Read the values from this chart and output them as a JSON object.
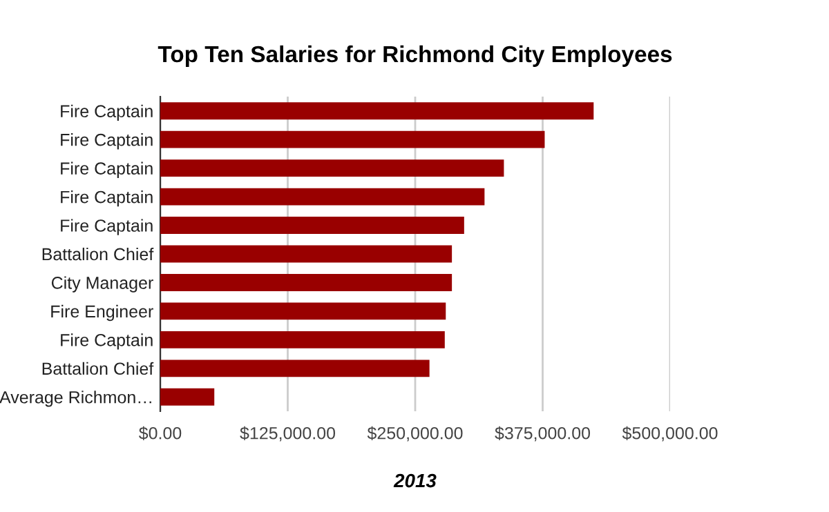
{
  "chart_data": {
    "type": "bar",
    "orientation": "horizontal",
    "title": "Top Ten Salaries for Richmond City Employees",
    "xlabel": "2013",
    "categories": [
      "Fire Captain",
      "Fire Captain",
      "Fire Captain",
      "Fire Captain",
      "Fire Captain",
      "Battalion Chief",
      "City Manager",
      "Fire Engineer",
      "Fire Captain",
      "Battalion Chief",
      "Average Richmon…"
    ],
    "values": [
      425000,
      377000,
      337000,
      318000,
      298000,
      286000,
      286000,
      280000,
      279000,
      264000,
      53000
    ],
    "color": "#990000",
    "xlim": [
      0,
      500000
    ],
    "xticks": [
      {
        "value": 0,
        "label": "$0.00"
      },
      {
        "value": 125000,
        "label": "$125,000.00"
      },
      {
        "value": 250000,
        "label": "$250,000.00"
      },
      {
        "value": 375000,
        "label": "$375,000.00"
      },
      {
        "value": 500000,
        "label": "$500,000.00"
      }
    ],
    "grid": "x",
    "legend": false
  }
}
